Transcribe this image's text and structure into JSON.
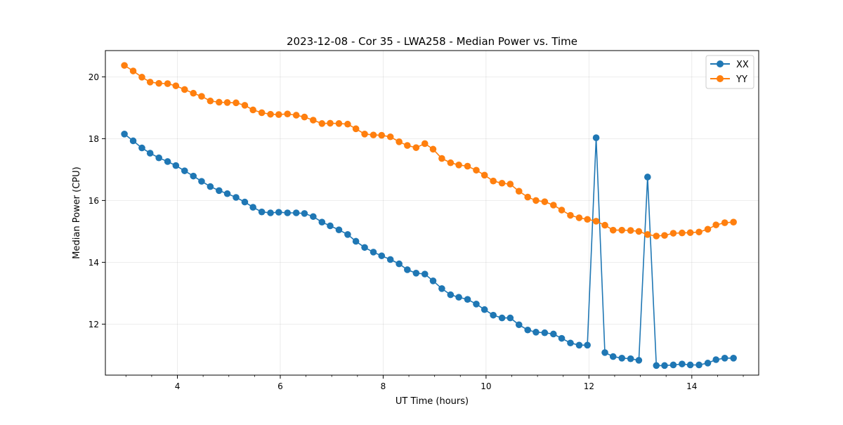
{
  "chart_data": {
    "type": "line",
    "title": "2023-12-08 - Cor 35 - LWA258 - Median Power vs. Time",
    "xlabel": "UT Time (hours)",
    "ylabel": "Median Power (CPU)",
    "xlim": [
      2.6,
      15.3
    ],
    "ylim": [
      10.35,
      20.85
    ],
    "xticks": [
      4,
      6,
      8,
      10,
      12,
      14
    ],
    "yticks": [
      12,
      14,
      16,
      18,
      20
    ],
    "grid": true,
    "legend_position": "top-right",
    "x": [
      2.97,
      3.14,
      3.31,
      3.47,
      3.64,
      3.81,
      3.97,
      4.14,
      4.31,
      4.47,
      4.64,
      4.81,
      4.97,
      5.14,
      5.31,
      5.47,
      5.64,
      5.81,
      5.97,
      6.14,
      6.31,
      6.47,
      6.64,
      6.81,
      6.97,
      7.14,
      7.31,
      7.47,
      7.64,
      7.81,
      7.97,
      8.14,
      8.31,
      8.47,
      8.64,
      8.81,
      8.97,
      9.14,
      9.31,
      9.47,
      9.64,
      9.81,
      9.97,
      10.14,
      10.31,
      10.47,
      10.64,
      10.81,
      10.97,
      11.14,
      11.31,
      11.47,
      11.64,
      11.81,
      11.97,
      12.14,
      12.31,
      12.47,
      12.64,
      12.81,
      12.97,
      13.14,
      13.31,
      13.47,
      13.64,
      13.81,
      13.97,
      14.14,
      14.31,
      14.47,
      14.64,
      14.81
    ],
    "series": [
      {
        "name": "XX",
        "color": "#1f77b4",
        "values": [
          18.15,
          17.93,
          17.7,
          17.53,
          17.38,
          17.26,
          17.13,
          16.96,
          16.79,
          16.62,
          16.45,
          16.32,
          16.22,
          16.1,
          15.95,
          15.78,
          15.63,
          15.6,
          15.62,
          15.6,
          15.6,
          15.58,
          15.48,
          15.3,
          15.18,
          15.05,
          14.9,
          14.68,
          14.48,
          14.33,
          14.21,
          14.09,
          13.95,
          13.76,
          13.65,
          13.62,
          13.4,
          13.15,
          12.95,
          12.87,
          12.8,
          12.65,
          12.47,
          12.29,
          12.2,
          12.2,
          11.98,
          11.81,
          11.74,
          11.72,
          11.68,
          11.54,
          11.39,
          11.32,
          11.32,
          18.03,
          11.08,
          10.95,
          10.9,
          10.88,
          10.83,
          16.76,
          10.66,
          10.66,
          10.68,
          10.71,
          10.68,
          10.68,
          10.74,
          10.85,
          10.9,
          10.9
        ]
      },
      {
        "name": "YY",
        "color": "#ff7f0e",
        "values": [
          20.37,
          20.19,
          19.99,
          19.83,
          19.79,
          19.78,
          19.71,
          19.59,
          19.47,
          19.37,
          19.22,
          19.18,
          19.17,
          19.16,
          19.08,
          18.93,
          18.84,
          18.79,
          18.78,
          18.8,
          18.76,
          18.7,
          18.6,
          18.49,
          18.5,
          18.49,
          18.47,
          18.32,
          18.15,
          18.12,
          18.11,
          18.06,
          17.9,
          17.78,
          17.71,
          17.84,
          17.66,
          17.36,
          17.22,
          17.15,
          17.11,
          16.98,
          16.82,
          16.63,
          16.56,
          16.53,
          16.3,
          16.11,
          16.0,
          15.96,
          15.85,
          15.69,
          15.52,
          15.44,
          15.39,
          15.33,
          15.2,
          15.04,
          15.04,
          15.03,
          15.0,
          14.9,
          14.85,
          14.87,
          14.94,
          14.95,
          14.96,
          14.98,
          15.07,
          15.21,
          15.28,
          15.3
        ]
      }
    ]
  }
}
